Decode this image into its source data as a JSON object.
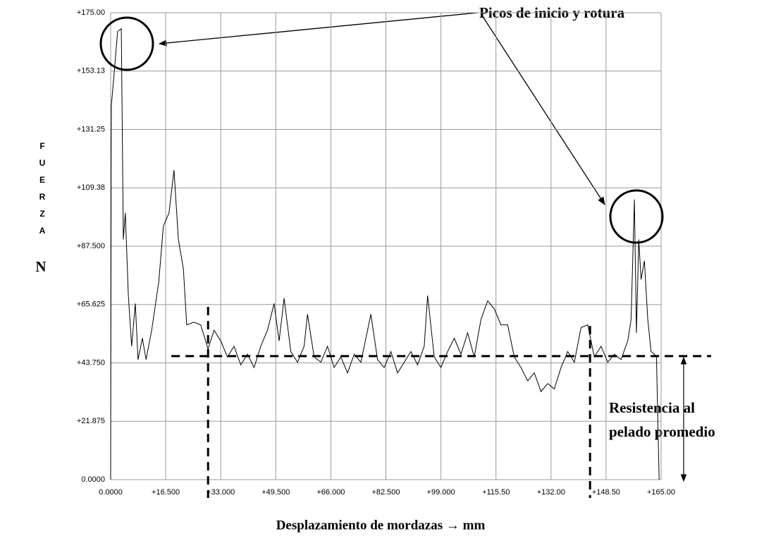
{
  "chart_data": {
    "type": "line",
    "x_label": "Desplazamiento de mordazas →  mm",
    "y_label": "FUERZA",
    "y_unit": "N",
    "annotations": [
      "Picos de inicio y rotura",
      "Resistencia al",
      "pelado promedio"
    ],
    "color": "#000000",
    "grid": true,
    "xlim": [
      0,
      165
    ],
    "ylim": [
      0,
      175
    ],
    "xticks": [
      {
        "value": 0,
        "label": "0.0000"
      },
      {
        "value": 16.5,
        "label": "+16.500"
      },
      {
        "value": 33,
        "label": "+33.000"
      },
      {
        "value": 49.5,
        "label": "+49.500"
      },
      {
        "value": 66,
        "label": "+66.000"
      },
      {
        "value": 82.5,
        "label": "+82.500"
      },
      {
        "value": 99,
        "label": "+99.000"
      },
      {
        "value": 115.5,
        "label": "+115.50"
      },
      {
        "value": 132,
        "label": "+132.00"
      },
      {
        "value": 148.5,
        "label": "+148.50"
      },
      {
        "value": 165,
        "label": "+165.00"
      }
    ],
    "yticks": [
      {
        "value": 0,
        "label": "0.0000"
      },
      {
        "value": 21.875,
        "label": "+21.875"
      },
      {
        "value": 43.75,
        "label": "+43.750"
      },
      {
        "value": 65.625,
        "label": "+65.625"
      },
      {
        "value": 87.5,
        "label": "+87.500"
      },
      {
        "value": 109.375,
        "label": "+109.38"
      },
      {
        "value": 131.25,
        "label": "+131.25"
      },
      {
        "value": 153.125,
        "label": "+153.13"
      },
      {
        "value": 175,
        "label": "+175.00"
      }
    ],
    "x": [
      0,
      0.2,
      1.1,
      2.1,
      3.2,
      3.8,
      4.4,
      5.3,
      6.3,
      7.4,
      8.2,
      9.5,
      10.6,
      12.3,
      14.4,
      15.8,
      17.5,
      19.0,
      20.3,
      21.8,
      22.8,
      24.9,
      27.0,
      29.2,
      31,
      33,
      35,
      37,
      39,
      41,
      43,
      45,
      47,
      49,
      50.5,
      52,
      54,
      56,
      58,
      59,
      61,
      63,
      65,
      67,
      69,
      71,
      73,
      75,
      77,
      78,
      80,
      82,
      84,
      86,
      88,
      90,
      92,
      94,
      95,
      97,
      99,
      101,
      103,
      105,
      107,
      109,
      111,
      113,
      115,
      117,
      119,
      121,
      123,
      125,
      127,
      129,
      131,
      133,
      135,
      137,
      139,
      141,
      143,
      145,
      147,
      149,
      151,
      153,
      155,
      156,
      157,
      157.6,
      158.3,
      159,
      160,
      161,
      162,
      163,
      163.6,
      164.4
    ],
    "values": [
      0,
      140,
      153,
      168,
      169,
      90,
      100,
      69,
      50,
      66,
      45,
      53,
      45,
      56,
      74,
      95,
      100,
      116,
      90,
      79,
      58,
      59,
      58,
      49,
      56,
      52,
      46,
      50,
      43,
      47,
      42,
      50,
      56,
      66,
      52,
      68,
      48,
      44,
      50,
      62,
      46,
      44,
      50,
      42,
      46,
      40,
      47,
      44,
      56,
      62,
      45,
      42,
      48,
      40,
      44,
      48,
      43,
      50,
      69,
      46,
      42,
      48,
      53,
      47,
      55,
      46,
      60,
      67,
      64,
      58,
      58,
      46,
      42,
      37,
      40,
      33,
      36,
      34,
      42,
      48,
      44,
      57,
      58,
      46,
      50,
      44,
      47,
      45,
      52,
      60,
      105,
      55,
      90,
      75,
      82,
      60,
      48,
      47,
      46,
      0
    ],
    "average_line": {
      "y": 46.3,
      "x": [
        18.2,
        180
      ]
    },
    "range_marks": [
      29.2,
      143.7
    ]
  }
}
